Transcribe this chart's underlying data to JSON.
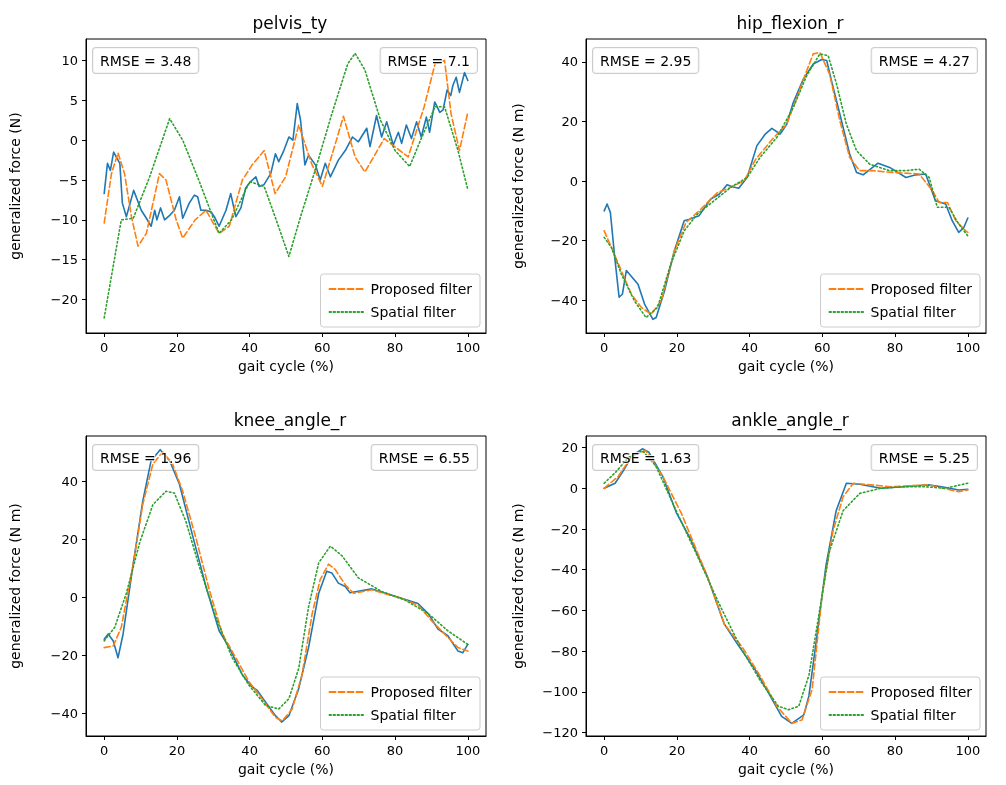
{
  "chart_data": [
    {
      "type": "line",
      "title": "pelvis_ty",
      "xlabel": "gait cycle (%)",
      "ylabel": "generalized force (N)",
      "xlim": [
        -5,
        105
      ],
      "xticks": [
        0,
        20,
        40,
        60,
        80,
        100
      ],
      "ylim": [
        -24.2,
        12.7
      ],
      "yticks": [
        -20,
        -15,
        -10,
        -5,
        0,
        5,
        10
      ],
      "grid": false,
      "legend": "bottom right",
      "marker": "none",
      "annotations": [
        "RMSE = 3.48",
        "RMSE = 7.1"
      ],
      "series": [
        {
          "color": "#1f77b4",
          "line_style": "solid",
          "x": [
            0,
            0.9,
            1.7,
            2.6,
            4.3,
            5.0,
            6.1,
            8.1,
            10.2,
            11.6,
            12.9,
            13.9,
            14.5,
            15.5,
            16.6,
            18.1,
            19.3,
            20.7,
            21.6,
            23.4,
            24.8,
            25.7,
            26.6,
            28.0,
            29.4,
            30.3,
            31.6,
            33.5,
            34.8,
            36.2,
            37.6,
            38.9,
            40.3,
            41.7,
            42.6,
            43.9,
            45.8,
            47.1,
            48.0,
            49.4,
            50.8,
            51.9,
            53.1,
            54.0,
            55.2,
            56.2,
            58.1,
            59.4,
            60.8,
            62.2,
            64.4,
            66.3,
            68.3,
            69.9,
            72.2,
            73.1,
            74.9,
            76.3,
            77.7,
            79.5,
            80.9,
            81.8,
            83.1,
            84.5,
            85.9,
            87.2,
            88.6,
            89.5,
            90.9,
            92.3,
            93.2,
            94.3,
            95.3,
            95.9,
            96.8,
            97.7,
            99.1,
            100
          ],
          "values": [
            -6.7,
            -2.9,
            -3.8,
            -1.5,
            -2.9,
            -7.9,
            -9.6,
            -6.3,
            -8.8,
            -9.8,
            -10.8,
            -8.8,
            -10,
            -8.5,
            -10,
            -9.4,
            -8.8,
            -7.1,
            -9.8,
            -7.9,
            -6.9,
            -7.1,
            -8.8,
            -8.8,
            -9,
            -9.6,
            -10.8,
            -8.8,
            -6.7,
            -9.6,
            -8.5,
            -6.0,
            -5.2,
            -4.6,
            -5.8,
            -5.6,
            -4.2,
            -1.7,
            -2.7,
            -1.3,
            0.4,
            0,
            4.6,
            2.5,
            -3.1,
            -1.9,
            -3.1,
            -5,
            -2.9,
            -4.6,
            -2.5,
            -1.3,
            0.4,
            -0.2,
            1.5,
            -0.8,
            3.1,
            0.4,
            2.3,
            -0.6,
            1.0,
            -0.4,
            1.9,
            0.2,
            2.3,
            0.4,
            2.9,
            1.0,
            4.8,
            3.5,
            3.8,
            6.3,
            5.6,
            6.9,
            7.9,
            6.0,
            8.5,
            7.5
          ]
        },
        {
          "name": "Proposed filter",
          "color": "#ff7f0e",
          "line_style": "dashed",
          "x": [
            0,
            2,
            3.8,
            5.6,
            7.5,
            9.3,
            11.6,
            15.2,
            17,
            19.8,
            21.6,
            25,
            28,
            31.6,
            34.4,
            38,
            40.7,
            44,
            47,
            49.9,
            53.5,
            57,
            60,
            63.6,
            65.8,
            69,
            71.7,
            77,
            83.6,
            88,
            91,
            93.6,
            95.4,
            97.7,
            100
          ],
          "values": [
            -10.4,
            -4.2,
            -1.6,
            -4.2,
            -9.6,
            -13.3,
            -11.7,
            -4.2,
            -5,
            -10,
            -12.3,
            -10,
            -8.8,
            -11.7,
            -10.8,
            -5,
            -3.1,
            -1.3,
            -6.7,
            -4.6,
            1.9,
            -2.9,
            -5.8,
            -0.4,
            3,
            -2.1,
            -4,
            0.2,
            -2.1,
            4.2,
            9.6,
            10,
            3.3,
            -1.3,
            3.5
          ]
        },
        {
          "name": "Spatial filter",
          "color": "#2ca02c",
          "line_style": "dotted",
          "x": [
            0,
            4.7,
            8,
            12.5,
            18,
            21.6,
            26,
            31.6,
            35,
            40,
            44,
            47,
            50.8,
            54,
            58,
            62.6,
            67,
            69,
            71.7,
            76,
            80,
            84,
            87,
            91,
            93.6,
            97.3,
            100
          ],
          "values": [
            -22.3,
            -10,
            -9.8,
            -4.6,
            2.7,
            0,
            -5,
            -11.7,
            -10,
            -5.2,
            -5.8,
            -9.6,
            -14.6,
            -9.6,
            -3.8,
            3.3,
            9.6,
            10.9,
            8.8,
            2.5,
            -1.3,
            -3.3,
            0,
            4.2,
            4.2,
            -1.3,
            -6.2
          ]
        }
      ]
    },
    {
      "type": "line",
      "title": "hip_flexion_r",
      "xlabel": "gait cycle (%)",
      "ylabel": "generalized force (N m)",
      "xlim": [
        -5,
        105
      ],
      "xticks": [
        0,
        20,
        40,
        60,
        80,
        100
      ],
      "ylim": [
        -51,
        47.7
      ],
      "yticks": [
        -40,
        -20,
        0,
        20,
        40
      ],
      "grid": false,
      "legend": "bottom right",
      "marker": "none",
      "annotations": [
        "RMSE = 2.95",
        "RMSE = 4.27"
      ],
      "series": [
        {
          "color": "#1f77b4",
          "line_style": "solid",
          "x": [
            0,
            0.8,
            1.7,
            2.9,
            4.1,
            5,
            6.1,
            7.5,
            9.3,
            11.1,
            13.4,
            14.3,
            16.6,
            19.3,
            22,
            23.4,
            26.1,
            29.3,
            31.6,
            33.8,
            35.2,
            37,
            39.3,
            42,
            44.3,
            46.1,
            48.4,
            50.2,
            52,
            54.8,
            57.5,
            59.8,
            61.2,
            62.5,
            64.8,
            67.5,
            69.4,
            71.2,
            75.3,
            78.5,
            83,
            85.7,
            88.4,
            91.1,
            93.9,
            95.7,
            97.5,
            98.9,
            100
          ],
          "values": [
            -10,
            -7.7,
            -10.5,
            -25.6,
            -39,
            -38,
            -30,
            -32,
            -34.6,
            -41.3,
            -46.4,
            -45.8,
            -36.8,
            -23.4,
            -13.3,
            -12.8,
            -11.6,
            -6,
            -4.4,
            -1.2,
            -1.9,
            -2.4,
            1.2,
            11.9,
            15.8,
            17.7,
            15.8,
            19.1,
            26.4,
            34.3,
            39.3,
            40.8,
            40.5,
            33.7,
            22.5,
            9.1,
            2.9,
            2.1,
            6,
            4.6,
            1.2,
            2.1,
            2.4,
            -6.6,
            -7.7,
            -13.3,
            -17.2,
            -15.6,
            -12.4
          ]
        },
        {
          "name": "Proposed filter",
          "color": "#ff7f0e",
          "line_style": "dashed",
          "x": [
            0,
            2,
            4.7,
            7.5,
            10.2,
            12.9,
            15.7,
            19.3,
            22.5,
            26.6,
            31.2,
            34.8,
            38.5,
            41.7,
            46.7,
            50.2,
            53,
            55.7,
            57.5,
            59.3,
            62,
            64.8,
            67.5,
            70.2,
            73.8,
            79.3,
            86.6,
            90.3,
            92.1,
            94.4,
            96.7,
            99.4,
            100
          ],
          "values": [
            -16.7,
            -22.3,
            -30.1,
            -38,
            -42.4,
            -44.7,
            -40.2,
            -23.4,
            -13.9,
            -9.4,
            -3.8,
            -2.1,
            0.1,
            7.4,
            14.7,
            19.1,
            28.1,
            37.1,
            42.7,
            43.2,
            35.9,
            20.3,
            8,
            3.5,
            3.5,
            2.9,
            2.4,
            -3.2,
            -7.2,
            -7.2,
            -13.3,
            -16.7,
            -17.2
          ]
        },
        {
          "name": "Spatial filter",
          "color": "#2ca02c",
          "line_style": "dotted",
          "x": [
            0,
            2,
            4.7,
            8.3,
            11.5,
            14.7,
            18.3,
            22,
            25.6,
            30.2,
            34.8,
            39.3,
            42.9,
            47.5,
            52,
            55.7,
            59.3,
            61.6,
            63.9,
            66.6,
            69.4,
            73,
            78.5,
            83,
            86.6,
            89.4,
            91.6,
            94.8,
            97.5,
            100
          ],
          "values": [
            -18.9,
            -22.3,
            -31.2,
            -40.2,
            -45.8,
            -42.4,
            -27.9,
            -16.7,
            -11.1,
            -6.6,
            -2.1,
            1.2,
            8,
            14.7,
            24.7,
            35.4,
            42.7,
            42.1,
            32.6,
            19.1,
            10.2,
            5.7,
            3.5,
            3.5,
            4,
            1.2,
            -8.8,
            -8.8,
            -14.4,
            -18.4
          ]
        }
      ]
    },
    {
      "type": "line",
      "title": "knee_angle_r",
      "xlabel": "gait cycle (%)",
      "ylabel": "generalized force (N m)",
      "xlim": [
        -5,
        105
      ],
      "xticks": [
        0,
        20,
        40,
        60,
        80,
        100
      ],
      "ylim": [
        -47.7,
        55.5
      ],
      "yticks": [
        -40,
        -20,
        0,
        20,
        40
      ],
      "grid": false,
      "legend": "bottom right",
      "marker": "none",
      "annotations": [
        "RMSE = 1.96",
        "RMSE = 6.55"
      ],
      "series": [
        {
          "color": "#1f77b4",
          "line_style": "solid",
          "x": [
            0,
            1.1,
            2.5,
            3.8,
            5.2,
            7.9,
            10.6,
            12.9,
            15.4,
            18,
            20.7,
            24.3,
            28,
            31.6,
            34.4,
            38,
            40.7,
            42.1,
            44.4,
            47.1,
            48.8,
            50.8,
            53.5,
            56.2,
            59,
            61.2,
            62.6,
            64.4,
            66.3,
            67.6,
            73.6,
            80.9,
            86.3,
            89.1,
            91.8,
            94.5,
            97.3,
            98.6,
            100
          ],
          "values": [
            -14.4,
            -12.6,
            -15,
            -20.8,
            -12.6,
            10.8,
            33,
            47,
            50.8,
            47,
            38.9,
            21.3,
            3.7,
            -11.5,
            -17.3,
            -26.7,
            -30.8,
            -32,
            -36.1,
            -40.7,
            -42.9,
            -40.7,
            -31.4,
            -17.3,
            1.4,
            9,
            8.4,
            4.9,
            3.7,
            1.6,
            2.9,
            0,
            -2.1,
            -5.6,
            -10.9,
            -13.2,
            -18.5,
            -19.1,
            -16.2
          ]
        },
        {
          "name": "Proposed filter",
          "color": "#ff7f0e",
          "line_style": "dashed",
          "x": [
            0,
            2.5,
            4.7,
            7.9,
            10.6,
            13.4,
            16.1,
            18.8,
            21.6,
            25.3,
            28.9,
            32.5,
            36.2,
            39.8,
            43.4,
            47.1,
            49,
            51.7,
            54.4,
            57.2,
            59.4,
            61.7,
            63.5,
            66.3,
            68.6,
            73.6,
            81.8,
            86.3,
            90,
            93.6,
            97.3,
            100
          ],
          "values": [
            -17.3,
            -16.7,
            -10.3,
            10.8,
            31.9,
            45.9,
            50,
            45.9,
            36.5,
            20.1,
            2.6,
            -12.6,
            -20.8,
            -29,
            -34.9,
            -41.3,
            -42.5,
            -38.4,
            -26.7,
            -5.6,
            6.1,
            11.4,
            9.6,
            4.3,
            1.4,
            2.6,
            -0.4,
            -2.7,
            -8,
            -12.6,
            -17.3,
            -18.5
          ]
        },
        {
          "name": "Spatial filter",
          "color": "#2ca02c",
          "line_style": "dotted",
          "x": [
            0,
            2.9,
            6.1,
            9.8,
            13.4,
            17,
            19.3,
            22.5,
            26.1,
            30.7,
            35.2,
            39.8,
            44.4,
            48,
            50.8,
            53.5,
            56.2,
            59,
            62.2,
            65.4,
            69.9,
            76.3,
            82.7,
            89.1,
            94.5,
            100
          ],
          "values": [
            -15,
            -10.3,
            1.4,
            19,
            31.9,
            36.5,
            35.9,
            26,
            10.8,
            -6.8,
            -20.8,
            -30.2,
            -37.2,
            -38.4,
            -34.9,
            -24.4,
            -3.3,
            11.9,
            17.6,
            14.3,
            6.7,
            2,
            -0.9,
            -5.6,
            -11.5,
            -16.2
          ]
        }
      ]
    },
    {
      "type": "line",
      "title": "ankle_angle_r",
      "xlabel": "gait cycle (%)",
      "ylabel": "generalized force (N m)",
      "xlim": [
        -5,
        105
      ],
      "xticks": [
        0,
        20,
        40,
        60,
        80,
        100
      ],
      "ylim": [
        -121.7,
        25.7
      ],
      "yticks": [
        -120,
        -100,
        -80,
        -60,
        -40,
        -20,
        0,
        20
      ],
      "grid": false,
      "legend": "bottom right",
      "marker": "none",
      "annotations": [
        "RMSE = 1.63",
        "RMSE = 5.25"
      ],
      "series": [
        {
          "color": "#1f77b4",
          "line_style": "solid",
          "x": [
            0,
            3,
            4.9,
            7.7,
            10.5,
            12.3,
            16.1,
            19.8,
            23.6,
            28.3,
            33,
            36.7,
            41.3,
            45.1,
            48.8,
            51.6,
            54.9,
            56.3,
            58.2,
            61,
            63.8,
            66.6,
            70.3,
            76,
            82.5,
            89.1,
            92.8,
            97.5,
            100
          ],
          "values": [
            0,
            2.5,
            7.6,
            16,
            19.4,
            17.7,
            5.9,
            -11.8,
            -24.5,
            -43,
            -66.6,
            -76.7,
            -88.5,
            -100.3,
            -112.1,
            -115.5,
            -111.3,
            -102,
            -76.7,
            -37.9,
            -11,
            2.5,
            2,
            0,
            0.8,
            1.7,
            0.8,
            -0.8,
            -0.5
          ]
        },
        {
          "name": "Proposed filter",
          "color": "#ff7f0e",
          "line_style": "dashed",
          "x": [
            0,
            3.9,
            7.7,
            11.4,
            16.1,
            21.3,
            28.3,
            33,
            38.1,
            42.8,
            47.5,
            51.6,
            54.4,
            57.2,
            60,
            62.9,
            65.7,
            68.5,
            73.2,
            78.8,
            89.1,
            97.5,
            100
          ],
          "values": [
            0,
            5.9,
            16,
            18.5,
            5.9,
            -12.6,
            -43,
            -66.6,
            -78.4,
            -91.9,
            -107.1,
            -115.5,
            -113.8,
            -98.7,
            -51.4,
            -21.1,
            -4.2,
            2.5,
            1.7,
            0.8,
            1.7,
            -1.7,
            -0.8
          ]
        },
        {
          "name": "Spatial filter",
          "color": "#2ca02c",
          "line_style": "dotted",
          "x": [
            0,
            3,
            6.7,
            10.5,
            14.2,
            19.8,
            26.4,
            32,
            37.6,
            43.2,
            47.9,
            50.7,
            53.5,
            56.3,
            59.1,
            61.9,
            65.7,
            70.3,
            76,
            82.5,
            88.1,
            93.7,
            100
          ],
          "values": [
            2.5,
            7.6,
            15.2,
            18.5,
            11,
            -11,
            -36.3,
            -58.2,
            -78.4,
            -95.3,
            -107.1,
            -108.8,
            -107.1,
            -91.9,
            -61.6,
            -31.2,
            -11,
            -2.5,
            0,
            0.8,
            0.8,
            0,
            2.5
          ]
        }
      ]
    }
  ]
}
